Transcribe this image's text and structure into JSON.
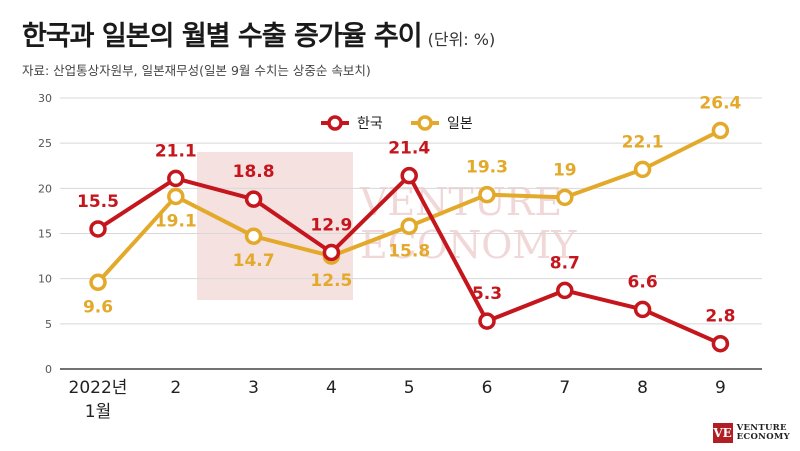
{
  "title": "한국과 일본의 월별 수출 증가율 추이",
  "unit": "(단위: %)",
  "source": "자료: 산업통상자원부, 일본재무성(일본 9월 수치는 상중순 속보치)",
  "watermark": {
    "line1": "VENTURE",
    "line2": "ECONOMY",
    "mark": "VE"
  },
  "colors": {
    "korea": "#c5161d",
    "japan": "#e3a92a",
    "grid": "#d8d8d8",
    "watermark": "#f5dcdc"
  },
  "chart_data": {
    "type": "line",
    "categories": [
      [
        "2022년",
        "1월"
      ],
      [
        "2"
      ],
      [
        "3"
      ],
      [
        "4"
      ],
      [
        "5"
      ],
      [
        "6"
      ],
      [
        "7"
      ],
      [
        "8"
      ],
      [
        "9"
      ]
    ],
    "ylim": [
      0,
      30
    ],
    "yticks": [
      0,
      5,
      10,
      15,
      20,
      25,
      30
    ],
    "grid": "horizontal",
    "legend_position": "top-center",
    "series": [
      {
        "name": "한국",
        "color": "#c5161d",
        "values": [
          15.5,
          21.1,
          18.8,
          12.9,
          21.4,
          5.3,
          8.7,
          6.6,
          2.8
        ],
        "labels": [
          "15.5",
          "21.1",
          "18.8",
          "12.9",
          "21.4",
          "5.3",
          "8.7",
          "6.6",
          "2.8"
        ]
      },
      {
        "name": "일본",
        "color": "#e3a92a",
        "values": [
          9.6,
          19.1,
          14.7,
          12.5,
          15.8,
          19.3,
          19,
          22.1,
          26.4
        ],
        "labels": [
          "9.6",
          "19.1",
          "14.7",
          "12.5",
          "15.8",
          "19.3",
          "19",
          "22.1",
          "26.4"
        ]
      }
    ]
  }
}
